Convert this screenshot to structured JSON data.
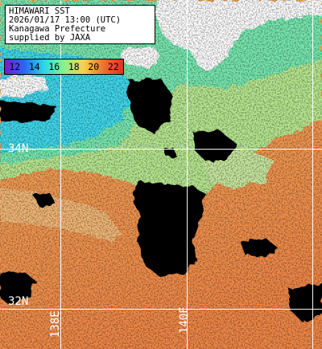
{
  "info": {
    "title": "HIMAWARI SST",
    "datetime": "2026/01/17 13:00 (UTC)",
    "region": "Kanagawa Prefecture",
    "credit": "supplied by JAXA"
  },
  "colorbar": {
    "labels": [
      "12",
      "14",
      "16",
      "18",
      "20",
      "22"
    ],
    "colors": [
      "#7a18c8",
      "#2a68f0",
      "#2cd8e8",
      "#8cf08a",
      "#f8d050",
      "#f07030",
      "#e03020"
    ]
  },
  "grid": {
    "lat_labels": [
      "34N",
      "32N"
    ],
    "lon_labels": [
      "138E",
      "140E"
    ]
  },
  "map_colors": {
    "land": "#ffffff",
    "cloud": "#000000",
    "cold_water": "#40d8ec",
    "cool_water": "#78e8b0",
    "mid_water": "#b8e890",
    "warm_water": "#f2a050",
    "hot_water": "#f08848"
  }
}
